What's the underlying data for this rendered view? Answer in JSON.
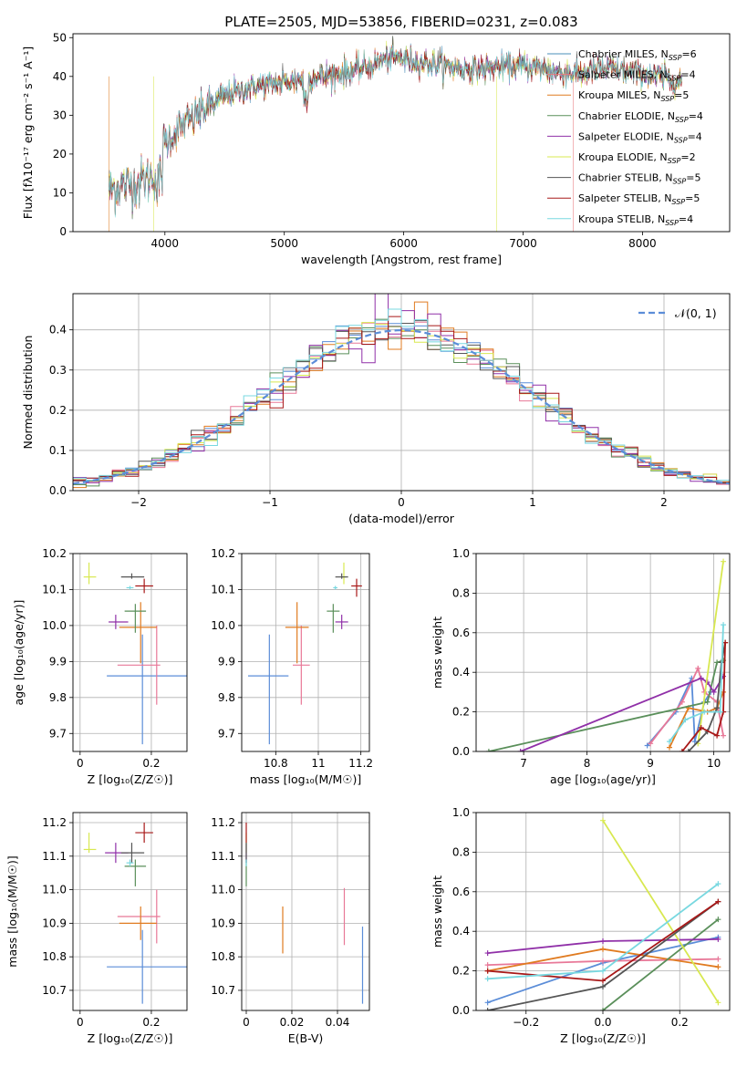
{
  "figure": {
    "title": "PLATE=2505, MJD=53856, FIBERID=0231, z=0.083"
  },
  "models": [
    {
      "name": "Chabrier MILES",
      "nssp": "6",
      "color": "#5b8dd8",
      "spec_color": "#4a8fb8"
    },
    {
      "name": "Salpeter MILES",
      "nssp": "4",
      "color": "#e87898",
      "spec_color": "#e8787c"
    },
    {
      "name": "Kroupa MILES",
      "nssp": "5",
      "color": "#e07b20",
      "spec_color": "#e07b20"
    },
    {
      "name": "Chabrier ELODIE",
      "nssp": "4",
      "color": "#5a8f5a",
      "spec_color": "#5a8f5a"
    },
    {
      "name": "Salpeter ELODIE",
      "nssp": "4",
      "color": "#9030a8",
      "spec_color": "#9030a8"
    },
    {
      "name": "Kroupa ELODIE",
      "nssp": "2",
      "color": "#d8e850",
      "spec_color": "#d8e850"
    },
    {
      "name": "Chabrier STELIB",
      "nssp": "5",
      "color": "#555555",
      "spec_color": "#555555"
    },
    {
      "name": "Salpeter STELIB",
      "nssp": "5",
      "color": "#a81818",
      "spec_color": "#a81818"
    },
    {
      "name": "Kroupa STELIB",
      "nssp": "4",
      "color": "#78d8e0",
      "spec_color": "#78d8e0"
    }
  ],
  "chart_data": [
    {
      "id": "spectrum",
      "type": "line",
      "xlabel": "wavelength [Angstrom, rest frame]",
      "ylabel": "Flux [fλ10⁻¹⁷ erg cm⁻² s⁻¹ A⁻¹]",
      "xlim": [
        3230,
        8730
      ],
      "ylim": [
        0,
        51
      ],
      "xticks": [
        4000,
        5000,
        6000,
        7000,
        8000
      ],
      "yticks": [
        0,
        10,
        20,
        30,
        40,
        50
      ],
      "legend": "top-right",
      "continuum": {
        "x": [
          3530,
          3700,
          3800,
          3880,
          3920,
          4000,
          4100,
          4300,
          4500,
          4700,
          4900,
          5100,
          5300,
          5500,
          5700,
          5900,
          6100,
          6300,
          6500,
          6700,
          6900,
          7100,
          7300,
          7500,
          7700,
          7900,
          8100,
          8300
        ],
        "y": [
          11,
          12,
          13,
          14,
          15,
          23,
          26,
          31,
          35,
          37,
          38,
          39,
          40,
          41,
          42.5,
          45,
          44,
          43,
          42,
          42,
          42.5,
          42.5,
          41,
          41,
          42,
          41,
          40,
          39
        ]
      },
      "dropouts": [
        {
          "x": 3530,
          "series": 2
        },
        {
          "x": 3905,
          "series": 5
        },
        {
          "x": 6780,
          "series": 5
        },
        {
          "x": 7420,
          "series": 1
        }
      ]
    },
    {
      "id": "residuals",
      "type": "step",
      "xlabel": "(data-model)/error",
      "ylabel": "Normed distribution",
      "xlim": [
        -2.5,
        2.5
      ],
      "ylim": [
        0,
        0.49
      ],
      "xticks": [
        -2,
        -1,
        0,
        1,
        2
      ],
      "yticks": [
        0.0,
        0.1,
        0.2,
        0.3,
        0.4
      ],
      "xtick_labels": [
        "−2",
        "−1",
        "0",
        "1",
        "2"
      ],
      "yticks_labels": [
        "0.0",
        "0.1",
        "0.2",
        "0.3",
        "0.4"
      ],
      "bin_width": 0.1,
      "gaussian_label": "𝒩(0, 1)",
      "gaussian_color": "#5b8dd8",
      "legend": "top-right"
    },
    {
      "id": "age_vs_Z",
      "type": "errorbar",
      "xlabel": "Z [log₁₀(Z/Z☉)]",
      "ylabel": "age  [log₁₀(age/yr)]",
      "xlim": [
        -0.02,
        0.3
      ],
      "ylim": [
        9.65,
        10.2
      ],
      "xticks": [
        0.0,
        0.2
      ],
      "yticks": [
        9.7,
        9.8,
        9.9,
        10.0,
        10.1,
        10.2
      ],
      "points": [
        {
          "m": 0,
          "x": 0.175,
          "xerr": [
            0.1,
            0.125
          ],
          "y": 9.86,
          "yerr": [
            0.19,
            0.115
          ]
        },
        {
          "m": 1,
          "x": 0.215,
          "xerr": [
            0.11,
            0.01
          ],
          "y": 9.89,
          "yerr": [
            0.11,
            0.11
          ]
        },
        {
          "m": 2,
          "x": 0.17,
          "xerr": [
            0.06,
            0.045
          ],
          "y": 9.995,
          "yerr": [
            0.1,
            0.07
          ]
        },
        {
          "m": 3,
          "x": 0.155,
          "xerr": [
            0.03,
            0.03
          ],
          "y": 10.04,
          "yerr": [
            0.06,
            0.02
          ]
        },
        {
          "m": 4,
          "x": 0.1,
          "xerr": [
            0.02,
            0.035
          ],
          "y": 10.01,
          "yerr": [
            0.02,
            0.02
          ]
        },
        {
          "m": 5,
          "x": 0.025,
          "xerr": [
            0.015,
            0.02
          ],
          "y": 10.135,
          "yerr": [
            0.02,
            0.04
          ]
        },
        {
          "m": 6,
          "x": 0.145,
          "xerr": [
            0.03,
            0.035
          ],
          "y": 10.135,
          "yerr": [
            0.005,
            0.01
          ]
        },
        {
          "m": 7,
          "x": 0.18,
          "xerr": [
            0.025,
            0.025
          ],
          "y": 10.11,
          "yerr": [
            0.02,
            0.02
          ]
        },
        {
          "m": 8,
          "x": 0.14,
          "xerr": [
            0.01,
            0.01
          ],
          "y": 10.105,
          "yerr": [
            0.005,
            0.005
          ]
        }
      ]
    },
    {
      "id": "age_vs_mass",
      "type": "errorbar",
      "xlabel": "mass [log₁₀(M/M☉)]",
      "ylabel": "",
      "xlim": [
        10.64,
        11.24
      ],
      "ylim": [
        9.65,
        10.2
      ],
      "xticks": [
        10.8,
        11.0,
        11.2
      ],
      "yticks": [
        9.7,
        9.8,
        9.9,
        10.0,
        10.1,
        10.2
      ],
      "points": [
        {
          "m": 0,
          "x": 10.77,
          "xerr": [
            0.1,
            0.09
          ],
          "y": 9.86,
          "yerr": [
            0.19,
            0.115
          ]
        },
        {
          "m": 1,
          "x": 10.92,
          "xerr": [
            0.04,
            0.04
          ],
          "y": 9.89,
          "yerr": [
            0.11,
            0.11
          ]
        },
        {
          "m": 2,
          "x": 10.9,
          "xerr": [
            0.055,
            0.055
          ],
          "y": 9.995,
          "yerr": [
            0.1,
            0.07
          ]
        },
        {
          "m": 3,
          "x": 11.07,
          "xerr": [
            0.03,
            0.03
          ],
          "y": 10.04,
          "yerr": [
            0.06,
            0.02
          ]
        },
        {
          "m": 4,
          "x": 11.11,
          "xerr": [
            0.03,
            0.03
          ],
          "y": 10.01,
          "yerr": [
            0.02,
            0.02
          ]
        },
        {
          "m": 5,
          "x": 11.12,
          "xerr": [
            0.01,
            0.01
          ],
          "y": 10.135,
          "yerr": [
            0.02,
            0.04
          ]
        },
        {
          "m": 6,
          "x": 11.11,
          "xerr": [
            0.03,
            0.03
          ],
          "y": 10.135,
          "yerr": [
            0.005,
            0.01
          ]
        },
        {
          "m": 7,
          "x": 11.18,
          "xerr": [
            0.025,
            0.025
          ],
          "y": 10.11,
          "yerr": [
            0.03,
            0.02
          ]
        },
        {
          "m": 8,
          "x": 11.08,
          "xerr": [
            0.01,
            0.01
          ],
          "y": 10.105,
          "yerr": [
            0.005,
            0.005
          ]
        }
      ]
    },
    {
      "id": "weight_vs_age",
      "type": "line",
      "xlabel": "age  [log₁₀(age/yr)]",
      "ylabel": "mass weight",
      "xlim": [
        6.25,
        10.25
      ],
      "ylim": [
        0,
        1
      ],
      "xticks": [
        7,
        8,
        9,
        10
      ],
      "yticks": [
        0.0,
        0.2,
        0.4,
        0.6,
        0.8,
        1.0
      ],
      "series": [
        {
          "m": 0,
          "x": [
            8.95,
            9.4,
            9.65,
            9.7,
            9.85,
            9.95
          ],
          "y": [
            0.03,
            0.2,
            0.37,
            0.05,
            0.25,
            0.3
          ]
        },
        {
          "m": 1,
          "x": [
            9.0,
            9.5,
            9.75,
            9.85,
            10.05,
            10.15
          ],
          "y": [
            0.04,
            0.25,
            0.42,
            0.3,
            0.25,
            0.08
          ]
        },
        {
          "m": 2,
          "x": [
            9.3,
            9.6,
            9.9,
            10.05,
            10.15
          ],
          "y": [
            0.02,
            0.22,
            0.2,
            0.22,
            0.3
          ]
        },
        {
          "m": 3,
          "x": [
            6.45,
            9.9,
            10.05,
            10.15
          ],
          "y": [
            0.0,
            0.25,
            0.45,
            0.46
          ]
        },
        {
          "m": 4,
          "x": [
            6.95,
            9.8,
            9.9,
            10.0,
            10.15
          ],
          "y": [
            0.0,
            0.37,
            0.35,
            0.3,
            0.38
          ]
        },
        {
          "m": 5,
          "x": [
            9.75,
            10.15
          ],
          "y": [
            0.04,
            0.96
          ]
        },
        {
          "m": 6,
          "x": [
            9.6,
            9.9,
            10.05,
            10.12,
            10.18
          ],
          "y": [
            0.0,
            0.1,
            0.22,
            0.45,
            0.55
          ]
        },
        {
          "m": 7,
          "x": [
            9.5,
            9.8,
            10.05,
            10.15,
            10.18
          ],
          "y": [
            0.0,
            0.12,
            0.08,
            0.2,
            0.55
          ]
        },
        {
          "m": 8,
          "x": [
            9.3,
            9.55,
            9.85,
            10.1,
            10.15
          ],
          "y": [
            0.05,
            0.16,
            0.2,
            0.2,
            0.64
          ]
        }
      ]
    },
    {
      "id": "mass_vs_Z",
      "type": "errorbar",
      "xlabel": "Z [log₁₀(Z/Z☉)]",
      "ylabel": "mass [log₁₀(M/M☉)]",
      "xlim": [
        -0.02,
        0.3
      ],
      "ylim": [
        10.64,
        11.23
      ],
      "xticks": [
        0.0,
        0.2
      ],
      "yticks": [
        10.7,
        10.8,
        10.9,
        11.0,
        11.1,
        11.2
      ],
      "points": [
        {
          "m": 0,
          "x": 0.175,
          "xerr": [
            0.1,
            0.125
          ],
          "y": 10.77,
          "yerr": [
            0.11,
            0.11
          ]
        },
        {
          "m": 1,
          "x": 0.215,
          "xerr": [
            0.11,
            0.01
          ],
          "y": 10.92,
          "yerr": [
            0.08,
            0.08
          ]
        },
        {
          "m": 2,
          "x": 0.17,
          "xerr": [
            0.06,
            0.045
          ],
          "y": 10.9,
          "yerr": [
            0.05,
            0.05
          ]
        },
        {
          "m": 3,
          "x": 0.155,
          "xerr": [
            0.03,
            0.03
          ],
          "y": 11.07,
          "yerr": [
            0.06,
            0.02
          ]
        },
        {
          "m": 4,
          "x": 0.1,
          "xerr": [
            0.03,
            0.035
          ],
          "y": 11.11,
          "yerr": [
            0.03,
            0.03
          ]
        },
        {
          "m": 5,
          "x": 0.025,
          "xerr": [
            0.015,
            0.02
          ],
          "y": 11.12,
          "yerr": [
            0.01,
            0.05
          ]
        },
        {
          "m": 6,
          "x": 0.145,
          "xerr": [
            0.03,
            0.035
          ],
          "y": 11.11,
          "yerr": [
            0.03,
            0.03
          ]
        },
        {
          "m": 7,
          "x": 0.18,
          "xerr": [
            0.025,
            0.025
          ],
          "y": 11.17,
          "yerr": [
            0.03,
            0.03
          ]
        },
        {
          "m": 8,
          "x": 0.14,
          "xerr": [
            0.01,
            0.01
          ],
          "y": 11.08,
          "yerr": [
            0.01,
            0.01
          ]
        }
      ]
    },
    {
      "id": "mass_vs_EBV",
      "type": "errorbar",
      "xlabel": "E(B-V)",
      "ylabel": "",
      "xlim": [
        -0.002,
        0.054
      ],
      "ylim": [
        10.64,
        11.23
      ],
      "xticks": [
        0.0,
        0.02,
        0.04
      ],
      "yticks": [
        10.7,
        10.8,
        10.9,
        11.0,
        11.1,
        11.2
      ],
      "points": [
        {
          "m": 0,
          "x": 0.051,
          "y": 10.77,
          "yerr": [
            0.11,
            0.12
          ]
        },
        {
          "m": 1,
          "x": 0.043,
          "y": 10.92,
          "yerr": [
            0.085,
            0.085
          ]
        },
        {
          "m": 2,
          "x": 0.016,
          "y": 10.88,
          "yerr": [
            0.07,
            0.07
          ]
        },
        {
          "m": 3,
          "x": 0.0,
          "y": 11.07,
          "yerr": [
            0.06,
            0.02
          ]
        },
        {
          "m": 4,
          "x": 0.0,
          "y": 11.11,
          "yerr": [
            0.03,
            0.03
          ]
        },
        {
          "m": 5,
          "x": 0.0,
          "y": 11.12,
          "yerr": [
            0.01,
            0.05
          ]
        },
        {
          "m": 6,
          "x": 0.0,
          "y": 11.11,
          "yerr": [
            0.03,
            0.03
          ]
        },
        {
          "m": 7,
          "x": 0.0,
          "y": 11.17,
          "yerr": [
            0.03,
            0.03
          ]
        },
        {
          "m": 8,
          "x": 0.0,
          "y": 11.08,
          "yerr": [
            0.01,
            0.01
          ]
        }
      ]
    },
    {
      "id": "weight_vs_Z",
      "type": "line",
      "xlabel": "Z [log₁₀(Z/Z☉)]",
      "ylabel": "mass weight",
      "xlim": [
        -0.33,
        0.33
      ],
      "ylim": [
        0,
        1
      ],
      "xticks": [
        -0.2,
        0.0,
        0.2
      ],
      "xtick_labels": [
        "−0.2",
        "0.0",
        "0.2"
      ],
      "yticks": [
        0.0,
        0.2,
        0.4,
        0.6,
        0.8,
        1.0
      ],
      "series": [
        {
          "m": 0,
          "x": [
            -0.3,
            0.0,
            0.3
          ],
          "y": [
            0.04,
            0.24,
            0.37
          ]
        },
        {
          "m": 1,
          "x": [
            -0.3,
            0.0,
            0.3
          ],
          "y": [
            0.23,
            0.25,
            0.26
          ]
        },
        {
          "m": 2,
          "x": [
            -0.3,
            0.0,
            0.3
          ],
          "y": [
            0.2,
            0.31,
            0.22
          ]
        },
        {
          "m": 3,
          "x": [
            0.0,
            0.3
          ],
          "y": [
            0.0,
            0.46
          ]
        },
        {
          "m": 4,
          "x": [
            -0.3,
            0.0,
            0.3
          ],
          "y": [
            0.29,
            0.35,
            0.36
          ]
        },
        {
          "m": 5,
          "x": [
            0.0,
            0.3
          ],
          "y": [
            0.96,
            0.04
          ]
        },
        {
          "m": 6,
          "x": [
            -0.3,
            0.0,
            0.3
          ],
          "y": [
            0.0,
            0.12,
            0.55
          ]
        },
        {
          "m": 7,
          "x": [
            -0.3,
            0.0,
            0.3
          ],
          "y": [
            0.2,
            0.15,
            0.55
          ]
        },
        {
          "m": 8,
          "x": [
            -0.3,
            0.0,
            0.3
          ],
          "y": [
            0.16,
            0.2,
            0.64
          ]
        }
      ]
    }
  ]
}
